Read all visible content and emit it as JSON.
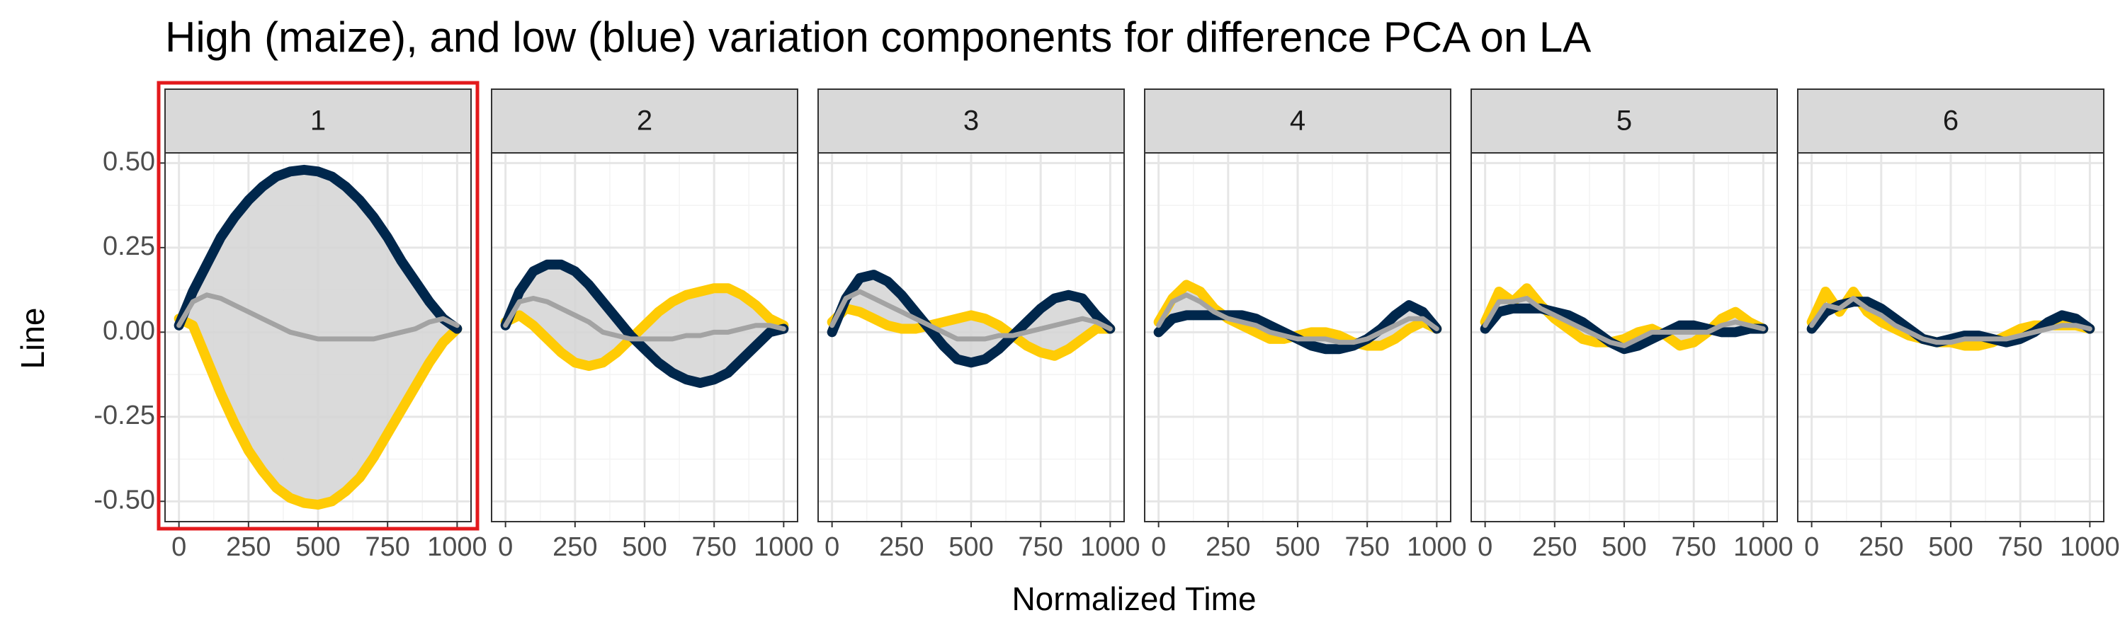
{
  "figure": {
    "title": "High (maize), and low (blue) variation components for difference PCA on LA",
    "x_label": "Normalized Time",
    "y_label": "Line"
  },
  "chart_data": [
    {
      "type": "line",
      "title": "1",
      "xlim": [
        -50,
        1050
      ],
      "xticks": [
        0,
        250,
        500,
        750,
        1000
      ],
      "ylim": [
        -0.56,
        0.53
      ],
      "yticks": [
        {
          "value": 0.5,
          "label": "0.50"
        },
        {
          "value": 0.25,
          "label": "0.25"
        },
        {
          "value": 0,
          "label": "0.00"
        },
        {
          "value": -0.25,
          "label": "-0.25"
        },
        {
          "value": -0.5,
          "label": "-0.50"
        }
      ],
      "grid": true,
      "ribbon_color": "#d3d3d3",
      "x": [
        0,
        50,
        100,
        150,
        200,
        250,
        300,
        350,
        400,
        450,
        500,
        550,
        600,
        650,
        700,
        750,
        800,
        850,
        900,
        950,
        1000
      ],
      "series": [
        {
          "color": "#ffcb05",
          "values": [
            0.04,
            0.02,
            -0.08,
            -0.18,
            -0.27,
            -0.35,
            -0.41,
            -0.46,
            -0.49,
            -0.505,
            -0.51,
            -0.5,
            -0.47,
            -0.43,
            -0.37,
            -0.3,
            -0.23,
            -0.16,
            -0.09,
            -0.03,
            0.01
          ]
        },
        {
          "color": "#00274c",
          "values": [
            0.02,
            0.12,
            0.2,
            0.28,
            0.34,
            0.39,
            0.43,
            0.46,
            0.475,
            0.48,
            0.475,
            0.46,
            0.43,
            0.39,
            0.34,
            0.28,
            0.21,
            0.15,
            0.09,
            0.04,
            0.01
          ]
        },
        {
          "color": "#a3a3a3",
          "values": [
            0.02,
            0.09,
            0.11,
            0.1,
            0.08,
            0.06,
            0.04,
            0.02,
            0.0,
            -0.01,
            -0.02,
            -0.02,
            -0.02,
            -0.02,
            -0.02,
            -0.01,
            0.0,
            0.01,
            0.03,
            0.04,
            0.02
          ]
        }
      ]
    },
    {
      "type": "line",
      "title": "2",
      "xlim": [
        -50,
        1050
      ],
      "xticks": [
        0,
        250,
        500,
        750,
        1000
      ],
      "grid": true,
      "ribbon_color": "#d3d3d3",
      "x": [
        0,
        50,
        100,
        150,
        200,
        250,
        300,
        350,
        400,
        450,
        500,
        550,
        600,
        650,
        700,
        750,
        800,
        850,
        900,
        950,
        1000
      ],
      "series": [
        {
          "color": "#ffcb05",
          "values": [
            0.03,
            0.05,
            0.02,
            -0.02,
            -0.06,
            -0.09,
            -0.1,
            -0.09,
            -0.06,
            -0.02,
            0.02,
            0.06,
            0.09,
            0.11,
            0.12,
            0.13,
            0.13,
            0.11,
            0.08,
            0.04,
            0.02
          ]
        },
        {
          "color": "#00274c",
          "values": [
            0.02,
            0.12,
            0.18,
            0.2,
            0.2,
            0.18,
            0.14,
            0.09,
            0.04,
            -0.01,
            -0.05,
            -0.09,
            -0.12,
            -0.14,
            -0.15,
            -0.14,
            -0.12,
            -0.08,
            -0.04,
            0.0,
            0.01
          ]
        },
        {
          "color": "#a3a3a3",
          "values": [
            0.02,
            0.09,
            0.1,
            0.09,
            0.07,
            0.05,
            0.03,
            0.0,
            -0.01,
            -0.02,
            -0.02,
            -0.02,
            -0.02,
            -0.01,
            -0.01,
            0.0,
            0.0,
            0.01,
            0.02,
            0.02,
            0.01
          ]
        }
      ]
    },
    {
      "type": "line",
      "title": "3",
      "xlim": [
        -50,
        1050
      ],
      "xticks": [
        0,
        250,
        500,
        750,
        1000
      ],
      "grid": true,
      "ribbon_color": "#d3d3d3",
      "x": [
        0,
        50,
        100,
        150,
        200,
        250,
        300,
        350,
        400,
        450,
        500,
        550,
        600,
        650,
        700,
        750,
        800,
        850,
        900,
        950,
        1000
      ],
      "series": [
        {
          "color": "#ffcb05",
          "values": [
            0.03,
            0.07,
            0.06,
            0.04,
            0.02,
            0.01,
            0.01,
            0.02,
            0.03,
            0.04,
            0.05,
            0.04,
            0.02,
            -0.01,
            -0.04,
            -0.06,
            -0.07,
            -0.05,
            -0.02,
            0.01,
            0.01
          ]
        },
        {
          "color": "#00274c",
          "values": [
            0.0,
            0.1,
            0.16,
            0.17,
            0.15,
            0.11,
            0.06,
            0.01,
            -0.04,
            -0.08,
            -0.09,
            -0.08,
            -0.05,
            -0.01,
            0.03,
            0.07,
            0.1,
            0.11,
            0.1,
            0.05,
            0.01
          ]
        },
        {
          "color": "#a3a3a3",
          "values": [
            0.02,
            0.1,
            0.12,
            0.1,
            0.08,
            0.06,
            0.04,
            0.02,
            0.0,
            -0.02,
            -0.02,
            -0.02,
            -0.01,
            -0.01,
            0.0,
            0.01,
            0.02,
            0.03,
            0.04,
            0.03,
            0.01
          ]
        }
      ]
    },
    {
      "type": "line",
      "title": "4",
      "xlim": [
        -50,
        1050
      ],
      "xticks": [
        0,
        250,
        500,
        750,
        1000
      ],
      "grid": true,
      "ribbon_color": "#d3d3d3",
      "x": [
        0,
        50,
        100,
        150,
        200,
        250,
        300,
        350,
        400,
        450,
        500,
        550,
        600,
        650,
        700,
        750,
        800,
        850,
        900,
        950,
        1000
      ],
      "series": [
        {
          "color": "#ffcb05",
          "values": [
            0.03,
            0.1,
            0.14,
            0.12,
            0.07,
            0.04,
            0.02,
            0.0,
            -0.02,
            -0.02,
            -0.01,
            0.0,
            0.0,
            -0.01,
            -0.03,
            -0.04,
            -0.04,
            -0.02,
            0.01,
            0.03,
            0.01
          ]
        },
        {
          "color": "#00274c",
          "values": [
            0.0,
            0.04,
            0.05,
            0.05,
            0.05,
            0.05,
            0.05,
            0.04,
            0.02,
            0.0,
            -0.02,
            -0.04,
            -0.05,
            -0.05,
            -0.04,
            -0.02,
            0.01,
            0.05,
            0.08,
            0.06,
            0.01
          ]
        },
        {
          "color": "#a3a3a3",
          "values": [
            0.02,
            0.09,
            0.11,
            0.09,
            0.06,
            0.04,
            0.03,
            0.02,
            0.0,
            -0.01,
            -0.02,
            -0.02,
            -0.02,
            -0.03,
            -0.03,
            -0.02,
            0.0,
            0.02,
            0.04,
            0.04,
            0.01
          ]
        }
      ]
    },
    {
      "type": "line",
      "title": "5",
      "xlim": [
        -50,
        1050
      ],
      "xticks": [
        0,
        250,
        500,
        750,
        1000
      ],
      "grid": true,
      "ribbon_color": "#d3d3d3",
      "x": [
        0,
        50,
        100,
        150,
        200,
        250,
        300,
        350,
        400,
        450,
        500,
        550,
        600,
        650,
        700,
        750,
        800,
        850,
        900,
        950,
        1000
      ],
      "series": [
        {
          "color": "#ffcb05",
          "values": [
            0.03,
            0.12,
            0.09,
            0.13,
            0.08,
            0.04,
            0.01,
            -0.02,
            -0.03,
            -0.03,
            -0.02,
            0.0,
            0.01,
            -0.01,
            -0.04,
            -0.03,
            0.0,
            0.04,
            0.06,
            0.03,
            0.01
          ]
        },
        {
          "color": "#00274c",
          "values": [
            0.01,
            0.06,
            0.07,
            0.07,
            0.07,
            0.06,
            0.05,
            0.03,
            0.0,
            -0.03,
            -0.05,
            -0.04,
            -0.02,
            0.0,
            0.02,
            0.02,
            0.01,
            0.0,
            0.0,
            0.01,
            0.01
          ]
        },
        {
          "color": "#a3a3a3",
          "values": [
            0.02,
            0.09,
            0.09,
            0.1,
            0.07,
            0.05,
            0.03,
            0.01,
            -0.01,
            -0.03,
            -0.04,
            -0.02,
            0.0,
            0.0,
            0.0,
            0.0,
            0.0,
            0.02,
            0.03,
            0.02,
            0.01
          ]
        }
      ]
    },
    {
      "type": "line",
      "title": "6",
      "xlim": [
        -50,
        1050
      ],
      "xticks": [
        0,
        250,
        500,
        750,
        1000
      ],
      "grid": true,
      "ribbon_color": "#d3d3d3",
      "x": [
        0,
        50,
        100,
        150,
        200,
        250,
        300,
        350,
        400,
        450,
        500,
        550,
        600,
        650,
        700,
        750,
        800,
        850,
        900,
        950,
        1000
      ],
      "series": [
        {
          "color": "#ffcb05",
          "values": [
            0.03,
            0.12,
            0.06,
            0.12,
            0.06,
            0.03,
            0.01,
            -0.01,
            -0.02,
            -0.03,
            -0.03,
            -0.04,
            -0.04,
            -0.03,
            -0.01,
            0.01,
            0.02,
            0.02,
            0.02,
            0.02,
            0.01
          ]
        },
        {
          "color": "#00274c",
          "values": [
            0.01,
            0.06,
            0.08,
            0.09,
            0.09,
            0.07,
            0.04,
            0.01,
            -0.02,
            -0.03,
            -0.02,
            -0.01,
            -0.01,
            -0.02,
            -0.03,
            -0.02,
            0.0,
            0.03,
            0.05,
            0.04,
            0.01
          ]
        },
        {
          "color": "#a3a3a3",
          "values": [
            0.02,
            0.08,
            0.07,
            0.1,
            0.07,
            0.05,
            0.02,
            0.0,
            -0.02,
            -0.03,
            -0.03,
            -0.02,
            -0.02,
            -0.02,
            -0.02,
            -0.01,
            0.0,
            0.01,
            0.02,
            0.02,
            0.01
          ]
        }
      ]
    }
  ]
}
